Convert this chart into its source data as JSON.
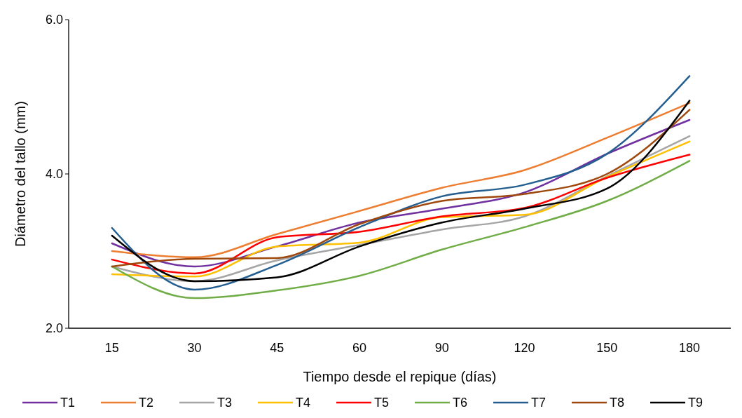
{
  "chart_data": {
    "type": "line",
    "xlabel": "Tiempo desde el repique (días)",
    "ylabel": "Diámetro del tallo (mm)",
    "categories": [
      "15",
      "30",
      "45",
      "60",
      "90",
      "120",
      "150",
      "180"
    ],
    "ylim": [
      2,
      6
    ],
    "yticks": [
      {
        "value": 2,
        "label": "2.0"
      },
      {
        "value": 4,
        "label": "4.0"
      },
      {
        "value": 6,
        "label": "6.0"
      }
    ],
    "grid": false,
    "legend": "bottom",
    "marker": "none",
    "line_style": "solid",
    "series": [
      {
        "name": "T1",
        "color": "#7030a0",
        "values": [
          3.1,
          2.8,
          3.06,
          3.37,
          3.55,
          3.76,
          4.26,
          4.7
        ]
      },
      {
        "name": "T2",
        "color": "#ed7d31",
        "values": [
          3.0,
          2.92,
          3.22,
          3.52,
          3.82,
          4.05,
          4.47,
          4.92
        ]
      },
      {
        "name": "T3",
        "color": "#a5a5a5",
        "values": [
          2.8,
          2.61,
          2.88,
          3.08,
          3.28,
          3.45,
          3.97,
          4.49
        ]
      },
      {
        "name": "T4",
        "color": "#ffc000",
        "values": [
          2.7,
          2.67,
          3.06,
          3.11,
          3.44,
          3.47,
          3.96,
          4.42
        ]
      },
      {
        "name": "T5",
        "color": "#ff0000",
        "values": [
          2.89,
          2.71,
          3.18,
          3.25,
          3.45,
          3.56,
          3.95,
          4.25
        ]
      },
      {
        "name": "T6",
        "color": "#70ad47",
        "values": [
          2.8,
          2.39,
          2.49,
          2.68,
          3.02,
          3.31,
          3.65,
          4.17
        ]
      },
      {
        "name": "T7",
        "color": "#255e91",
        "values": [
          3.3,
          2.5,
          2.82,
          3.31,
          3.71,
          3.86,
          4.26,
          5.27
        ]
      },
      {
        "name": "T8",
        "color": "#9e480e",
        "values": [
          2.8,
          2.9,
          2.91,
          3.35,
          3.65,
          3.74,
          4.0,
          4.83
        ]
      },
      {
        "name": "T9",
        "color": "#000000",
        "values": [
          3.2,
          2.61,
          2.66,
          3.06,
          3.37,
          3.55,
          3.81,
          4.95
        ]
      }
    ]
  }
}
